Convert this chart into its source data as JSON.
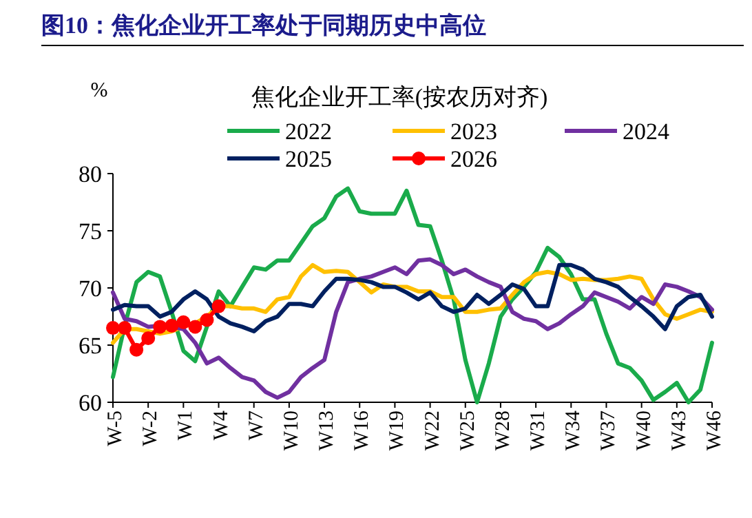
{
  "chart_data": {
    "type": "line",
    "title": "图10：焦化企业开工率处于同期历史中高位",
    "legend_title": "焦化企业开工率(按农历对齐)",
    "ylabel": "%",
    "categories": [
      "W-5",
      null,
      null,
      "W-2",
      null,
      null,
      "W1",
      null,
      null,
      "W4",
      null,
      null,
      "W7",
      null,
      null,
      "W10",
      null,
      null,
      "W13",
      null,
      null,
      "W16",
      null,
      null,
      "W19",
      null,
      null,
      "W22",
      null,
      null,
      "W25",
      null,
      null,
      "W28",
      null,
      null,
      "W31",
      null,
      null,
      "W34",
      null,
      null,
      "W37",
      null,
      null,
      "W40",
      null,
      null,
      "W43",
      null,
      null,
      "W46"
    ],
    "ylim": [
      60,
      80
    ],
    "yticks": [
      60,
      65,
      70,
      75,
      80
    ],
    "legend": "top",
    "line_style": "solid",
    "series": [
      {
        "name": "2022",
        "color": "#1aab4b",
        "values": [
          62.2,
          66.7,
          70.5,
          71.4,
          71.0,
          67.9,
          64.5,
          63.6,
          66.6,
          69.7,
          68.4,
          70.1,
          71.8,
          71.6,
          72.4,
          72.4,
          73.9,
          75.4,
          76.1,
          78.0,
          78.7,
          76.7,
          76.5,
          76.5,
          76.5,
          78.5,
          75.5,
          75.4,
          72.4,
          69.0,
          63.7,
          60.0,
          63.4,
          67.5,
          69.0,
          70.1,
          71.4,
          73.5,
          72.7,
          71.2,
          69.0,
          69.0,
          66.0,
          63.4,
          63.0,
          61.9,
          60.2,
          60.9,
          61.7,
          60.0,
          61.1,
          65.2
        ]
      },
      {
        "name": "2023",
        "color": "#ffc000",
        "values": [
          65.2,
          66.4,
          66.4,
          66.2,
          66.0,
          66.2,
          66.6,
          66.9,
          67.5,
          68.4,
          68.4,
          68.2,
          68.2,
          67.9,
          69.0,
          69.2,
          71.0,
          72.0,
          71.4,
          71.5,
          71.4,
          70.5,
          69.6,
          70.3,
          70.1,
          70.1,
          69.7,
          69.7,
          69.2,
          69.2,
          67.9,
          67.9,
          68.1,
          68.2,
          69.4,
          70.5,
          71.2,
          71.4,
          71.2,
          70.7,
          70.8,
          70.7,
          70.7,
          70.8,
          71.0,
          70.8,
          69.0,
          67.7,
          67.3,
          67.7,
          68.1,
          67.9
        ]
      },
      {
        "name": "2024",
        "color": "#7030a0",
        "values": [
          69.6,
          67.3,
          67.1,
          66.6,
          66.7,
          66.6,
          66.4,
          65.2,
          63.4,
          63.9,
          63.0,
          62.2,
          61.9,
          60.9,
          60.4,
          60.9,
          62.2,
          63.0,
          63.7,
          67.9,
          70.5,
          70.8,
          71.0,
          71.4,
          71.8,
          71.2,
          72.4,
          72.5,
          72.0,
          71.2,
          71.6,
          71.0,
          70.5,
          70.1,
          67.9,
          67.3,
          67.1,
          66.4,
          66.9,
          67.7,
          68.4,
          69.6,
          69.2,
          68.8,
          68.2,
          69.2,
          68.6,
          70.3,
          70.1,
          69.7,
          69.2,
          68.1
        ]
      },
      {
        "name": "2025",
        "color": "#002060",
        "values": [
          68.1,
          68.5,
          68.4,
          68.4,
          67.5,
          67.9,
          69.0,
          69.7,
          69.0,
          67.5,
          66.9,
          66.6,
          66.2,
          67.1,
          67.5,
          68.6,
          68.6,
          68.4,
          69.7,
          70.8,
          70.8,
          70.7,
          70.5,
          70.1,
          70.1,
          69.6,
          69.0,
          69.6,
          68.4,
          67.9,
          68.2,
          69.4,
          68.6,
          69.4,
          70.3,
          69.9,
          68.4,
          68.4,
          72.0,
          72.0,
          71.6,
          70.8,
          70.5,
          70.1,
          69.2,
          68.4,
          67.5,
          66.4,
          68.4,
          69.2,
          69.4,
          67.5
        ]
      },
      {
        "name": "2026",
        "color": "#ff0000",
        "marker": "circle",
        "values": [
          66.5,
          66.5,
          64.6,
          65.6,
          66.6,
          66.7,
          67.0,
          66.6,
          67.2,
          68.4,
          null,
          null,
          null,
          null,
          null,
          null,
          null,
          null,
          null,
          null,
          null,
          null,
          null,
          null,
          null,
          null,
          null,
          null,
          null,
          null,
          null,
          null,
          null,
          null,
          null,
          null,
          null,
          null,
          null,
          null,
          null,
          null,
          null,
          null,
          null,
          null,
          null,
          null,
          null,
          null,
          null,
          null
        ]
      }
    ]
  }
}
